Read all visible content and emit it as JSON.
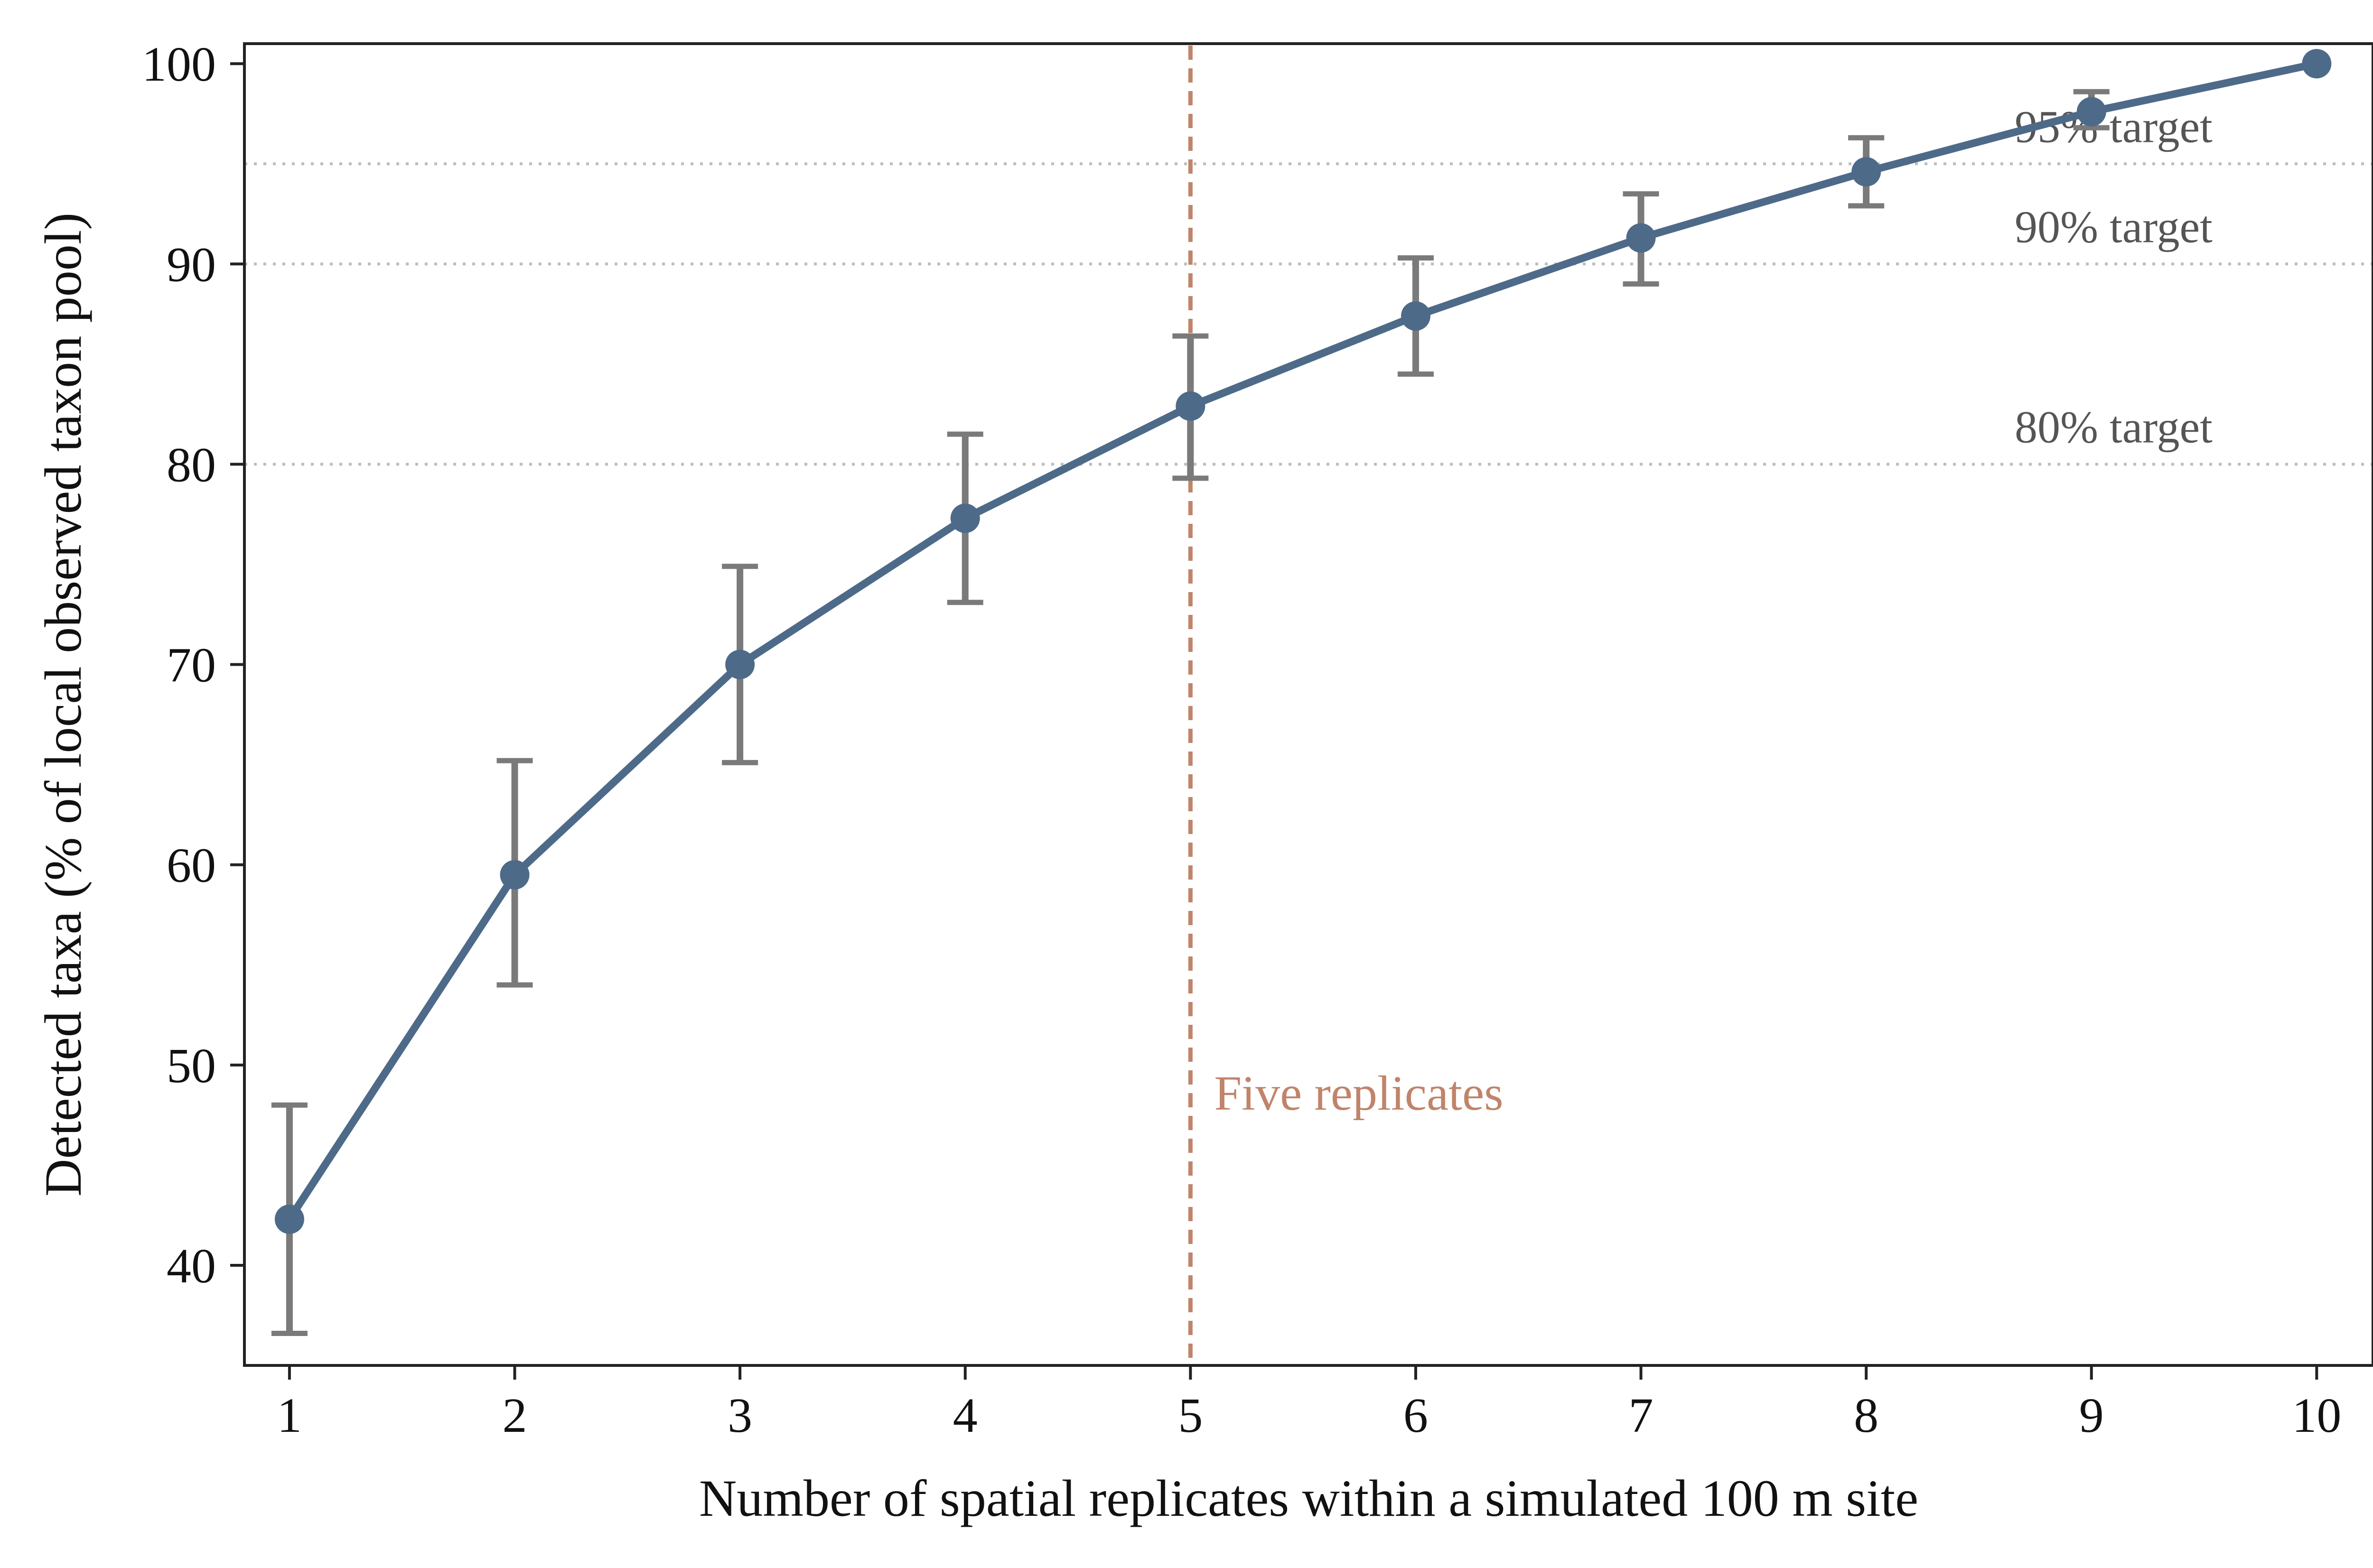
{
  "chart_data": {
    "type": "line",
    "xlabel": "Number of spatial replicates within a simulated 100 m site",
    "ylabel": "Detected taxa (% of local observed taxon pool)",
    "xlim": [
      0.8,
      10.25
    ],
    "ylim": [
      35,
      101
    ],
    "x_ticks": [
      1,
      2,
      3,
      4,
      5,
      6,
      7,
      8,
      9,
      10
    ],
    "y_ticks": [
      40,
      50,
      60,
      70,
      80,
      90,
      100
    ],
    "x": [
      1,
      2,
      3,
      4,
      5,
      6,
      7,
      8,
      9,
      10
    ],
    "series": [
      {
        "values": [
          42.3,
          59.5,
          70.0,
          77.3,
          82.9,
          87.4,
          91.3,
          94.6,
          97.6,
          100.0
        ],
        "error_low": [
          36.6,
          54.0,
          65.1,
          73.1,
          79.3,
          84.5,
          89.0,
          92.9,
          96.8,
          100.0
        ],
        "error_high": [
          48.0,
          65.2,
          74.9,
          81.5,
          86.4,
          90.3,
          93.5,
          96.3,
          98.6,
          100.0
        ],
        "color": "#4e6a89",
        "error_color": "#7a7a7a"
      }
    ],
    "reference_lines": [
      {
        "axis": "y",
        "value": 95,
        "label": "95% target",
        "style": "dotted",
        "color": "#bdbdbd"
      },
      {
        "axis": "y",
        "value": 90,
        "label": "90% target",
        "style": "dotted",
        "color": "#bdbdbd"
      },
      {
        "axis": "y",
        "value": 80,
        "label": "80% target",
        "style": "dotted",
        "color": "#bdbdbd"
      },
      {
        "axis": "x",
        "value": 5,
        "label": "Five replicates",
        "style": "dashed",
        "color": "#c0846b"
      }
    ],
    "grid": false,
    "legend": "none",
    "annotation_color": "#555555"
  }
}
